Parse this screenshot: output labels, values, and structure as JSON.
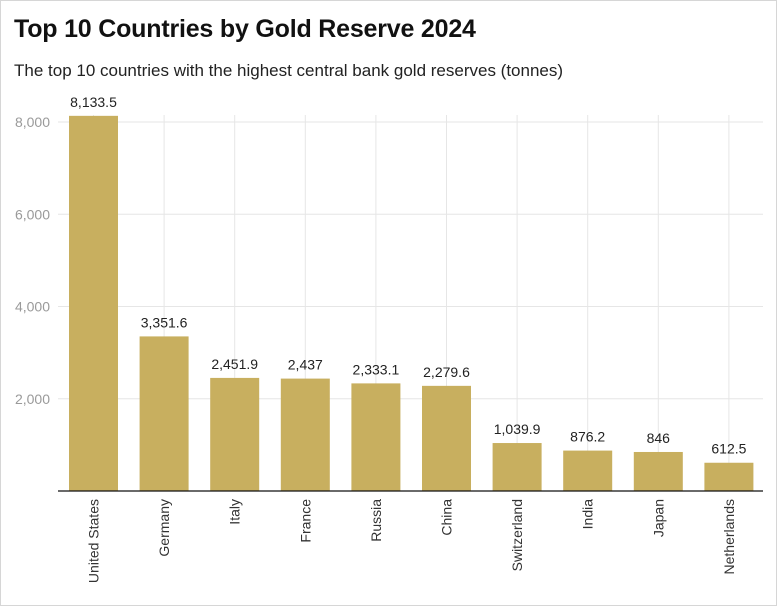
{
  "chart_data": {
    "type": "bar",
    "title": "Top 10 Countries by Gold Reserve 2024",
    "subtitle": "The top 10 countries with the highest central bank gold reserves (tonnes)",
    "xlabel": "",
    "ylabel": "",
    "categories": [
      "United States",
      "Germany",
      "Italy",
      "France",
      "Russia",
      "China",
      "Switzerland",
      "India",
      "Japan",
      "Netherlands"
    ],
    "values": [
      8133.5,
      3351.6,
      2451.9,
      2437,
      2333.1,
      2279.6,
      1039.9,
      876.2,
      846,
      612.5
    ],
    "data_labels": [
      "8,133.5",
      "3,351.6",
      "2,451.9",
      "2,437",
      "2,333.1",
      "2,279.6",
      "1,039.9",
      "876.2",
      "846",
      "612.5"
    ],
    "ylim": [
      0,
      8133.5
    ],
    "yticks": [
      2000,
      4000,
      6000,
      8000
    ],
    "ytick_labels": [
      "2,000",
      "4,000",
      "6,000",
      "8,000"
    ],
    "grid": true,
    "legend": "none",
    "bar_color": "#c8af5f",
    "axis_color": "#111111",
    "grid_color": "#e6e6e6"
  }
}
